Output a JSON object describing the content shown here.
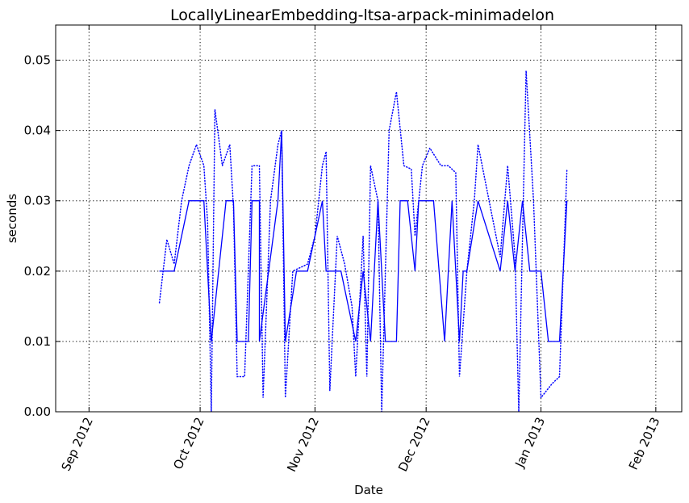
{
  "chart_data": {
    "type": "line",
    "title": "LocallyLinearEmbedding-ltsa-arpack-minimadelon",
    "xlabel": "Date",
    "ylabel": "seconds",
    "ylim": [
      0,
      0.055
    ],
    "xlim": [
      "2012-08-23",
      "2013-02-08"
    ],
    "x_ticks": [
      {
        "date": "2012-09-01",
        "label": "Sep 2012"
      },
      {
        "date": "2012-10-01",
        "label": "Oct 2012"
      },
      {
        "date": "2012-11-01",
        "label": "Nov 2012"
      },
      {
        "date": "2012-12-01",
        "label": "Dec 2012"
      },
      {
        "date": "2013-01-01",
        "label": "Jan 2013"
      },
      {
        "date": "2013-02-01",
        "label": "Feb 2013"
      }
    ],
    "y_ticks": [
      {
        "value": 0.0,
        "label": "0.00"
      },
      {
        "value": 0.01,
        "label": "0.01"
      },
      {
        "value": 0.02,
        "label": "0.02"
      },
      {
        "value": 0.03,
        "label": "0.03"
      },
      {
        "value": 0.04,
        "label": "0.04"
      },
      {
        "value": 0.05,
        "label": "0.05"
      }
    ],
    "grid": true,
    "color": "#0000ff",
    "series": [
      {
        "style": "solid",
        "points": [
          [
            "2012-09-20",
            0.02
          ],
          [
            "2012-09-22",
            0.02
          ],
          [
            "2012-09-24",
            0.02
          ],
          [
            "2012-09-28",
            0.03
          ],
          [
            "2012-10-02",
            0.03
          ],
          [
            "2012-10-04",
            0.01
          ],
          [
            "2012-10-06",
            0.02
          ],
          [
            "2012-10-08",
            0.03
          ],
          [
            "2012-10-10",
            0.03
          ],
          [
            "2012-10-11",
            0.01
          ],
          [
            "2012-10-14",
            0.01
          ],
          [
            "2012-10-15",
            0.03
          ],
          [
            "2012-10-17",
            0.03
          ],
          [
            "2012-10-17",
            0.01
          ],
          [
            "2012-10-22",
            0.03
          ],
          [
            "2012-10-23",
            0.04
          ],
          [
            "2012-10-24",
            0.01
          ],
          [
            "2012-10-27",
            0.02
          ],
          [
            "2012-10-30",
            0.02
          ],
          [
            "2012-11-03",
            0.03
          ],
          [
            "2012-11-04",
            0.02
          ],
          [
            "2012-11-08",
            0.02
          ],
          [
            "2012-11-12",
            0.01
          ],
          [
            "2012-11-14",
            0.02
          ],
          [
            "2012-11-16",
            0.01
          ],
          [
            "2012-11-18",
            0.03
          ],
          [
            "2012-11-20",
            0.01
          ],
          [
            "2012-11-23",
            0.01
          ],
          [
            "2012-11-24",
            0.03
          ],
          [
            "2012-11-26",
            0.03
          ],
          [
            "2012-11-28",
            0.02
          ],
          [
            "2012-11-29",
            0.03
          ],
          [
            "2012-12-03",
            0.03
          ],
          [
            "2012-12-06",
            0.01
          ],
          [
            "2012-12-08",
            0.03
          ],
          [
            "2012-12-10",
            0.01
          ],
          [
            "2012-12-11",
            0.02
          ],
          [
            "2012-12-12",
            0.02
          ],
          [
            "2012-12-15",
            0.03
          ],
          [
            "2012-12-21",
            0.02
          ],
          [
            "2012-12-23",
            0.03
          ],
          [
            "2012-12-25",
            0.02
          ],
          [
            "2012-12-27",
            0.03
          ],
          [
            "2012-12-29",
            0.02
          ],
          [
            "2013-01-01",
            0.02
          ],
          [
            "2013-01-03",
            0.01
          ],
          [
            "2013-01-06",
            0.01
          ],
          [
            "2013-01-08",
            0.03
          ]
        ]
      },
      {
        "style": "dotted",
        "points": [
          [
            "2012-09-20",
            0.0155
          ],
          [
            "2012-09-22",
            0.0245
          ],
          [
            "2012-09-24",
            0.021
          ],
          [
            "2012-09-26",
            0.03
          ],
          [
            "2012-09-28",
            0.035
          ],
          [
            "2012-09-30",
            0.038
          ],
          [
            "2012-10-02",
            0.035
          ],
          [
            "2012-10-03",
            0.027
          ],
          [
            "2012-10-04",
            0.0
          ],
          [
            "2012-10-05",
            0.043
          ],
          [
            "2012-10-07",
            0.035
          ],
          [
            "2012-10-09",
            0.038
          ],
          [
            "2012-10-10",
            0.029
          ],
          [
            "2012-10-11",
            0.005
          ],
          [
            "2012-10-13",
            0.005
          ],
          [
            "2012-10-15",
            0.035
          ],
          [
            "2012-10-17",
            0.035
          ],
          [
            "2012-10-18",
            0.002
          ],
          [
            "2012-10-20",
            0.03
          ],
          [
            "2012-10-22",
            0.038
          ],
          [
            "2012-10-23",
            0.04
          ],
          [
            "2012-10-24",
            0.002
          ],
          [
            "2012-10-26",
            0.02
          ],
          [
            "2012-10-30",
            0.021
          ],
          [
            "2012-11-01",
            0.025
          ],
          [
            "2012-11-03",
            0.035
          ],
          [
            "2012-11-04",
            0.037
          ],
          [
            "2012-11-05",
            0.003
          ],
          [
            "2012-11-07",
            0.025
          ],
          [
            "2012-11-09",
            0.021
          ],
          [
            "2012-11-11",
            0.015
          ],
          [
            "2012-11-12",
            0.005
          ],
          [
            "2012-11-14",
            0.025
          ],
          [
            "2012-11-15",
            0.005
          ],
          [
            "2012-11-16",
            0.035
          ],
          [
            "2012-11-18",
            0.03
          ],
          [
            "2012-11-19",
            0.0
          ],
          [
            "2012-11-21",
            0.04
          ],
          [
            "2012-11-23",
            0.0455
          ],
          [
            "2012-11-25",
            0.035
          ],
          [
            "2012-11-27",
            0.0345
          ],
          [
            "2012-11-28",
            0.025
          ],
          [
            "2012-11-30",
            0.035
          ],
          [
            "2012-12-02",
            0.0375
          ],
          [
            "2012-12-05",
            0.035
          ],
          [
            "2012-12-07",
            0.035
          ],
          [
            "2012-12-09",
            0.034
          ],
          [
            "2012-12-10",
            0.005
          ],
          [
            "2012-12-12",
            0.02
          ],
          [
            "2012-12-14",
            0.03
          ],
          [
            "2012-12-15",
            0.038
          ],
          [
            "2012-12-21",
            0.022
          ],
          [
            "2012-12-23",
            0.035
          ],
          [
            "2012-12-25",
            0.022
          ],
          [
            "2012-12-26",
            0.0
          ],
          [
            "2012-12-28",
            0.0485
          ],
          [
            "2012-12-30",
            0.03
          ],
          [
            "2013-01-01",
            0.002
          ],
          [
            "2013-01-04",
            0.004
          ],
          [
            "2013-01-06",
            0.005
          ],
          [
            "2013-01-08",
            0.0345
          ]
        ]
      }
    ]
  }
}
